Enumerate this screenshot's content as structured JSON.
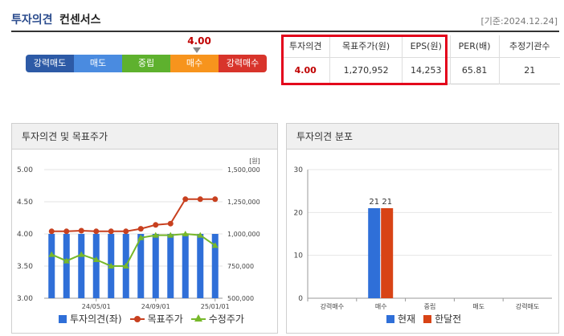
{
  "header": {
    "title_main": "투자의견",
    "title_sub": "컨센서스",
    "base_date": "[기준:2024.12.24]"
  },
  "opinion_bar": {
    "value": "4.00",
    "segments": [
      {
        "label": "강력매도",
        "color": "#2d5aa6"
      },
      {
        "label": "매도",
        "color": "#4a8be0"
      },
      {
        "label": "중립",
        "color": "#5eb12e"
      },
      {
        "label": "매수",
        "color": "#f7941d"
      },
      {
        "label": "강력매수",
        "color": "#d8342b"
      }
    ]
  },
  "consensus_table": {
    "headers": [
      "투자의견",
      "목표주가(원)",
      "EPS(원)",
      "PER(배)",
      "추정기관수"
    ],
    "values": [
      "4.00",
      "1,270,952",
      "14,253",
      "65.81",
      "21"
    ]
  },
  "left_panel": {
    "title": "투자의견 및 목표주가",
    "unit": "[원]",
    "legend": [
      "투자의견(좌)",
      "목표주가",
      "수정주가"
    ]
  },
  "right_panel": {
    "title": "투자의견 분포",
    "legend": [
      "현재",
      "한달전"
    ]
  },
  "colors": {
    "opinion_bar": "#2f6fd8",
    "target_price": "#c8401f",
    "adjusted_price": "#77b82a",
    "current": "#2f6fd8",
    "month_ago": "#d84315"
  },
  "chart_data": [
    {
      "type": "bar+line",
      "title": "투자의견 및 목표주가",
      "x_tick_labels": [
        "24/05/01",
        "24/09/01",
        "25/01/01"
      ],
      "y_left": {
        "ticks": [
          "3.00",
          "3.50",
          "4.00",
          "4.50",
          "5.00"
        ],
        "range": [
          3.0,
          5.0
        ]
      },
      "y_right": {
        "ticks": [
          "500,000",
          "750,000",
          "1,000,000",
          "1,250,000",
          "1,500,000"
        ],
        "range": [
          500000,
          1500000
        ],
        "unit": "[원]"
      },
      "series": [
        {
          "name": "투자의견(좌)",
          "axis": "left",
          "kind": "bar",
          "values": [
            4.0,
            4.0,
            4.0,
            4.0,
            4.0,
            4.0,
            4.0,
            4.0,
            4.0,
            4.0,
            4.0,
            4.0
          ]
        },
        {
          "name": "목표주가",
          "axis": "right",
          "kind": "line",
          "values": [
            1020000,
            1020000,
            1025000,
            1020000,
            1020000,
            1020000,
            1040000,
            1070000,
            1080000,
            1270000,
            1270000,
            1270000
          ]
        },
        {
          "name": "수정주가",
          "axis": "right",
          "kind": "line",
          "values": [
            840000,
            790000,
            840000,
            800000,
            750000,
            750000,
            970000,
            990000,
            990000,
            1000000,
            990000,
            910000
          ]
        }
      ]
    },
    {
      "type": "bar",
      "title": "투자의견 분포",
      "categories": [
        "강력매수",
        "매수",
        "중립",
        "매도",
        "강력매도"
      ],
      "y_ticks": [
        "0",
        "10",
        "20",
        "30"
      ],
      "ylim": [
        0,
        30
      ],
      "series": [
        {
          "name": "현재",
          "values": [
            0,
            21,
            0,
            0,
            0
          ]
        },
        {
          "name": "한달전",
          "values": [
            0,
            21,
            0,
            0,
            0
          ]
        }
      ]
    }
  ]
}
